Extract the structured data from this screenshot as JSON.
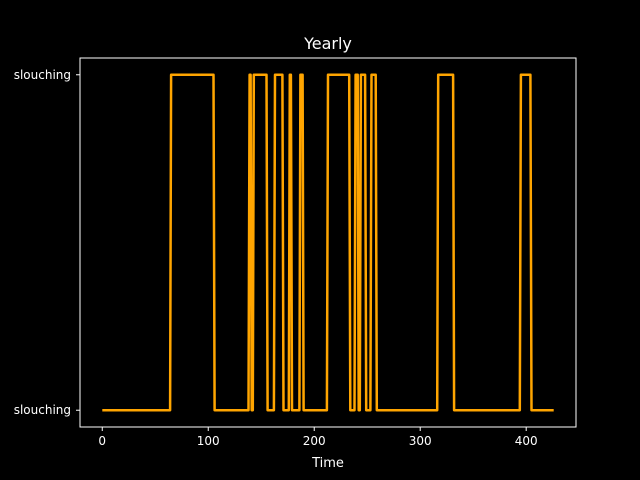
{
  "chart_data": {
    "type": "line",
    "title": "Yearly",
    "xlabel": "Time",
    "ylabel": "",
    "xlim": [
      -21,
      447
    ],
    "ylim": [
      -0.05,
      1.05
    ],
    "xticks": [
      0,
      100,
      200,
      300,
      400
    ],
    "yticks": [
      {
        "value": 0,
        "label": "slouching"
      },
      {
        "value": 1,
        "label": "slouching"
      }
    ],
    "grid": false,
    "series": [
      {
        "color": "#ffa500",
        "x": [
          0,
          64,
          65,
          105,
          106,
          138,
          139,
          140,
          141,
          142,
          143,
          144,
          145,
          155,
          156,
          162,
          163,
          170,
          171,
          176,
          177,
          178,
          179,
          186,
          187,
          189,
          190,
          212,
          213,
          233,
          234,
          238,
          239,
          241,
          242,
          243,
          244,
          248,
          249,
          253,
          254,
          258,
          259,
          316,
          317,
          331,
          332,
          394,
          395,
          404,
          405,
          426
        ],
        "y": [
          0,
          0,
          1,
          1,
          0,
          0,
          1,
          1,
          0,
          0,
          1,
          1,
          1,
          1,
          0,
          0,
          1,
          1,
          0,
          0,
          1,
          1,
          0,
          0,
          1,
          1,
          0,
          0,
          1,
          1,
          0,
          0,
          1,
          1,
          0,
          0,
          1,
          1,
          0,
          0,
          1,
          1,
          0,
          0,
          1,
          1,
          0,
          0,
          1,
          1,
          0,
          0
        ]
      }
    ]
  }
}
